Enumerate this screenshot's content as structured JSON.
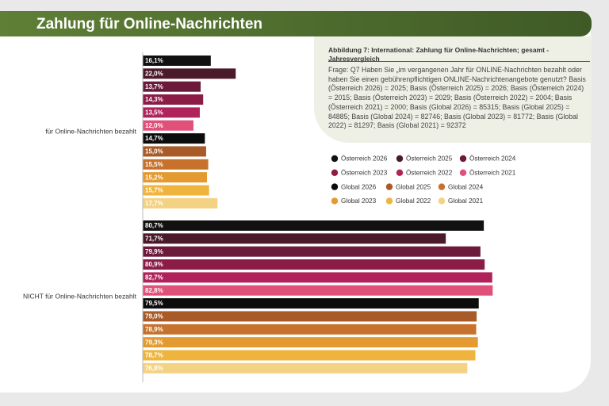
{
  "chart_data": {
    "type": "bar",
    "orientation": "horizontal",
    "title": "Zahlung für Online-Nachrichten",
    "subtitle": "Abbildung 7: International: Zahlung für Online-Nachrichten; gesamt - Jahresvergleich",
    "note": "Frage: Q7 Haben Sie „im vergangenen Jahr für ONLINE-Nachrichten bezahlt oder haben Sie einen gebührenpflichtigen ONLINE-Nachrichtenangebote genutzt? Basis (Österreich 2026) = 2025; Basis (Österreich 2025) = 2026; Basis (Österreich 2024) = 2015; Basis (Österreich 2023) = 2029; Basis (Österreich 2022) = 2004; Basis (Österreich 2021) = 2000; Basis (Global 2026) = 85315; Basis (Global 2025) = 84885; Basis (Global 2024) = 82746; Basis (Global 2023) = 81772; Basis (Global 2022) = 81297; Basis (Global 2021) = 92372",
    "categories": [
      "für Online-Nachrichten bezahlt",
      "NICHT für Online-Nachrichten bezahlt"
    ],
    "series": [
      {
        "name": "Österreich 2026",
        "color": "#111111",
        "values": [
          16.1,
          80.7
        ],
        "value_labels": [
          "16,1%",
          "80,7%"
        ]
      },
      {
        "name": "Österreich 2025",
        "color": "#4b1a2a",
        "values": [
          22.0,
          71.7
        ],
        "value_labels": [
          "22,0%",
          "71,7%"
        ]
      },
      {
        "name": "Österreich 2024",
        "color": "#6b1a3a",
        "values": [
          13.7,
          79.9
        ],
        "value_labels": [
          "13,7%",
          "79,9%"
        ]
      },
      {
        "name": "Österreich 2023",
        "color": "#8a1c45",
        "values": [
          14.3,
          80.9
        ],
        "value_labels": [
          "14,3%",
          "80,9%"
        ]
      },
      {
        "name": "Österreich 2022",
        "color": "#b0235a",
        "values": [
          13.5,
          82.7
        ],
        "value_labels": [
          "13,5%",
          "82,7%"
        ]
      },
      {
        "name": "Österreich 2021",
        "color": "#e0517a",
        "values": [
          12.0,
          82.8
        ],
        "value_labels": [
          "12,0%",
          "82,8%"
        ]
      },
      {
        "name": "Global 2026",
        "color": "#0c0c0c",
        "values": [
          14.7,
          79.5
        ],
        "value_labels": [
          "14,7%",
          "79,5%"
        ]
      },
      {
        "name": "Global 2025",
        "color": "#a85a28",
        "values": [
          15.0,
          79.0
        ],
        "value_labels": [
          "15,0%",
          "79,0%"
        ]
      },
      {
        "name": "Global 2024",
        "color": "#c7722c",
        "values": [
          15.5,
          78.9
        ],
        "value_labels": [
          "15,5%",
          "78,9%"
        ]
      },
      {
        "name": "Global 2023",
        "color": "#e39a30",
        "values": [
          15.2,
          79.3
        ],
        "value_labels": [
          "15,2%",
          "79,3%"
        ]
      },
      {
        "name": "Global 2022",
        "color": "#efb43e",
        "values": [
          15.7,
          78.7
        ],
        "value_labels": [
          "15,7%",
          "78,7%"
        ]
      },
      {
        "name": "Global 2021",
        "color": "#f3d283",
        "values": [
          17.7,
          76.8
        ],
        "value_labels": [
          "17,7%",
          "76,8%"
        ]
      }
    ]
  }
}
